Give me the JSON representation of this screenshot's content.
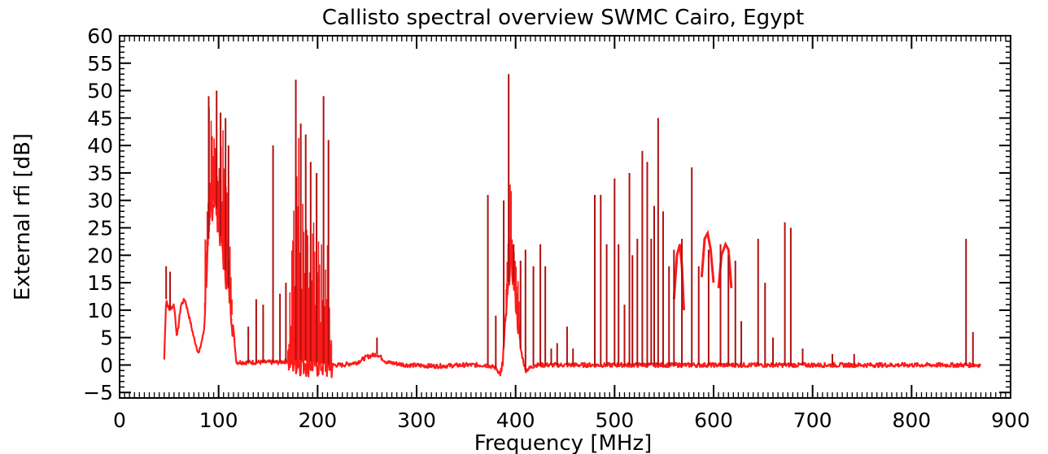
{
  "chart_data": {
    "type": "line",
    "title": "Callisto spectral overview SWMC Cairo, Egypt",
    "xlabel": "Frequency [MHz]",
    "ylabel": "External rfi [dB]",
    "xlim": [
      0,
      900
    ],
    "ylim": [
      -6,
      60
    ],
    "xticks": [
      0,
      100,
      200,
      300,
      400,
      500,
      600,
      700,
      800,
      900
    ],
    "yticks": [
      -5,
      0,
      5,
      10,
      15,
      20,
      25,
      30,
      35,
      40,
      45,
      50,
      55,
      60
    ],
    "grid": false,
    "line_color": "#ff1a1a",
    "spike_color": "#b01010",
    "baseline": {
      "x": [
        45,
        47,
        50,
        55,
        58,
        62,
        66,
        70,
        75,
        80,
        85,
        88,
        92,
        96,
        100,
        104,
        108,
        112,
        118,
        125,
        140,
        160,
        180,
        200,
        215,
        225,
        240,
        250,
        260,
        270,
        290,
        320,
        350,
        370,
        380,
        386,
        390,
        395,
        400,
        405,
        410,
        420,
        440,
        460,
        480,
        500,
        520,
        540,
        560,
        580,
        600,
        620,
        640,
        660,
        680,
        700,
        740,
        780,
        820,
        845,
        852,
        860,
        870
      ],
      "y": [
        1,
        12,
        10,
        11,
        5,
        11,
        12,
        9,
        5,
        2,
        6,
        18,
        28,
        31,
        26,
        21,
        16,
        12,
        0.5,
        0.5,
        0.5,
        0.5,
        1,
        0.5,
        0,
        0,
        0.5,
        1.5,
        2,
        0.5,
        0,
        -0.2,
        0,
        0,
        -0.5,
        -2,
        8,
        20,
        12,
        3,
        -1,
        0,
        0,
        0,
        0,
        0,
        0,
        0,
        0,
        0,
        0,
        0,
        0,
        0,
        0,
        0,
        0,
        0,
        0,
        0,
        0,
        0,
        0
      ]
    },
    "upper_band": {
      "x": [
        86,
        90,
        95,
        100,
        105,
        110,
        114,
        170,
        175,
        180,
        185,
        190,
        195,
        200,
        205,
        210,
        214,
        390,
        395,
        400,
        404
      ],
      "y": [
        20,
        48,
        42,
        38,
        45,
        30,
        10,
        5,
        30,
        45,
        40,
        25,
        28,
        30,
        20,
        24,
        5,
        20,
        35,
        25,
        10
      ]
    },
    "bumps": [
      {
        "x": [
          560,
          563,
          566,
          568,
          570
        ],
        "y": [
          12,
          20,
          22,
          18,
          10
        ]
      },
      {
        "x": [
          588,
          591,
          594,
          597,
          600
        ],
        "y": [
          16,
          23,
          24,
          21,
          15
        ]
      },
      {
        "x": [
          605,
          608,
          612,
          615,
          618
        ],
        "y": [
          14,
          20,
          22,
          21,
          14
        ]
      }
    ],
    "spikes": {
      "x": [
        47,
        51,
        90,
        98,
        102,
        107,
        110,
        130,
        138,
        145,
        155,
        162,
        168,
        178,
        183,
        188,
        193,
        199,
        206,
        211,
        260,
        372,
        380,
        388,
        393,
        398,
        405,
        410,
        418,
        425,
        430,
        436,
        442,
        452,
        458,
        480,
        486,
        492,
        500,
        504,
        510,
        515,
        518,
        523,
        528,
        533,
        537,
        540,
        544,
        549,
        555,
        560,
        568,
        578,
        585,
        595,
        607,
        615,
        622,
        628,
        645,
        652,
        660,
        672,
        678,
        690,
        720,
        742,
        855,
        862
      ],
      "y": [
        18,
        17,
        49,
        50,
        46,
        45,
        40,
        7,
        12,
        11,
        40,
        13,
        15,
        52,
        44,
        42,
        37,
        35,
        49,
        41,
        5,
        31,
        9,
        30,
        53,
        22,
        19,
        21,
        18,
        22,
        18,
        3,
        4,
        7,
        3,
        31,
        31,
        22,
        34,
        22,
        11,
        35,
        20,
        23,
        39,
        37,
        23,
        29,
        45,
        28,
        18,
        21,
        23,
        36,
        18,
        21,
        22,
        20,
        19,
        8,
        23,
        15,
        5,
        26,
        25,
        3,
        2,
        2,
        23,
        6
      ]
    }
  }
}
